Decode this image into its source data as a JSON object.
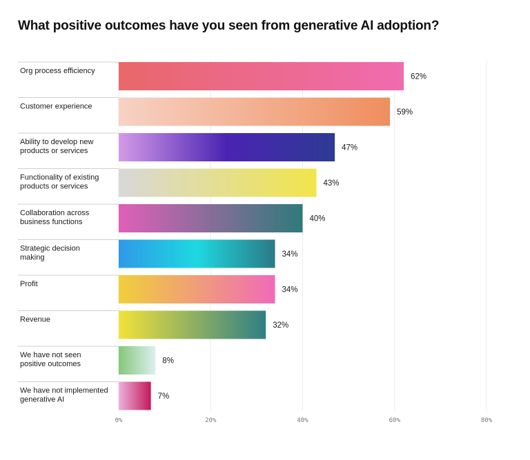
{
  "chart_data": {
    "type": "bar",
    "orientation": "horizontal",
    "title": "What positive outcomes have you seen from generative AI adoption?",
    "categories": [
      [
        "Org process efficiency"
      ],
      [
        "Customer experience"
      ],
      [
        "Ability to develop new",
        "products or services"
      ],
      [
        "Functionality of existing",
        "products or services"
      ],
      [
        "Collaboration across",
        "business functions"
      ],
      [
        "Strategic decision",
        "making"
      ],
      [
        "Profit"
      ],
      [
        "Revenue"
      ],
      [
        "We have not seen",
        "positive outcomes"
      ],
      [
        "We have not implemented",
        "generative AI"
      ]
    ],
    "values": [
      62,
      59,
      47,
      43,
      40,
      34,
      34,
      32,
      8,
      7
    ],
    "value_labels": [
      "62%",
      "59%",
      "47%",
      "43%",
      "40%",
      "34%",
      "34%",
      "32%",
      "8%",
      "7%"
    ],
    "xlim": [
      0,
      80
    ],
    "xticks": [
      0,
      20,
      40,
      60,
      80
    ],
    "xtick_labels": [
      "0%",
      "20%",
      "40%",
      "60%",
      "80%"
    ],
    "grid": true,
    "legend": "none",
    "bar_gradients": [
      [
        "#e8686a",
        "#f06bb0"
      ],
      [
        "#f7d2c4",
        "#ef8e5e"
      ],
      [
        "#d49ae8",
        "#4a23b3",
        "#2e3a94"
      ],
      [
        "#d8d8d8",
        "#f1e54a"
      ],
      [
        "#e060b8",
        "#2f7a7a"
      ],
      [
        "#2e9ae8",
        "#1ed8e0",
        "#2a7a86"
      ],
      [
        "#f0cf3a",
        "#f06bb8"
      ],
      [
        "#f2e23a",
        "#2f7f86"
      ],
      [
        "#86c77a",
        "#ddeff0"
      ],
      [
        "#ecb2dc",
        "#c2195a"
      ]
    ]
  }
}
